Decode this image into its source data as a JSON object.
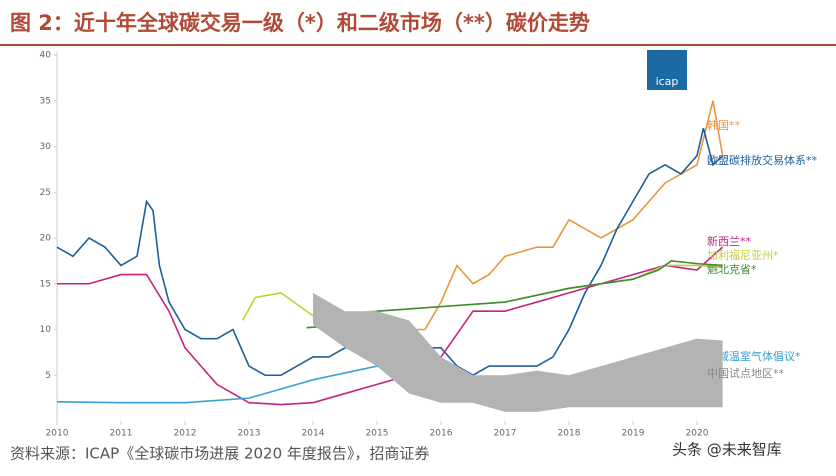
{
  "chart_data": {
    "type": "line",
    "title": "图 2：近十年全球碳交易一级（*）和二级市场（**）碳价走势",
    "source": "资料来源：ICAP《全球碳市场进展 2020 年度报告》，招商证券",
    "watermark": "头条 @未来智库",
    "logo": "icap",
    "xlim": [
      2010,
      2020.5
    ],
    "xticks": [
      2010,
      2011,
      2012,
      2013,
      2014,
      2015,
      2016,
      2017,
      2018,
      2019,
      2020
    ],
    "ylim": [
      0,
      40
    ],
    "yticks": [
      5,
      10,
      15,
      20,
      25,
      30,
      35,
      40
    ],
    "series": [
      {
        "name": "韩国**",
        "color": "#e8973f",
        "x": [
          2015,
          2015.5,
          2015.75,
          2016,
          2016.25,
          2016.5,
          2016.75,
          2017,
          2017.5,
          2017.75,
          2018,
          2018.25,
          2018.5,
          2018.75,
          2019,
          2019.5,
          2019.75,
          2020,
          2020.25,
          2020.4
        ],
        "values": [
          9,
          10,
          10,
          13,
          17,
          15,
          16,
          18,
          19,
          19,
          22,
          21,
          20,
          21,
          22,
          26,
          27,
          28,
          35,
          29
        ]
      },
      {
        "name": "欧盟碳排放交易体系**",
        "color": "#1f5f99",
        "x": [
          2010,
          2010.25,
          2010.5,
          2010.75,
          2011,
          2011.25,
          2011.4,
          2011.5,
          2011.6,
          2011.75,
          2012,
          2012.25,
          2012.5,
          2012.75,
          2013,
          2013.25,
          2013.5,
          2013.75,
          2014,
          2014.25,
          2014.5,
          2014.75,
          2015,
          2015.5,
          2015.75,
          2016,
          2016.25,
          2016.5,
          2016.75,
          2017,
          2017.5,
          2017.75,
          2018,
          2018.25,
          2018.5,
          2018.75,
          2019,
          2019.25,
          2019.5,
          2019.75,
          2020,
          2020.1,
          2020.25,
          2020.4
        ],
        "values": [
          19,
          18,
          20,
          19,
          17,
          18,
          24,
          23,
          17,
          13,
          10,
          9,
          9,
          10,
          6,
          5,
          5,
          6,
          7,
          7,
          8,
          8,
          8,
          9,
          8,
          8,
          6,
          5,
          6,
          6,
          6,
          7,
          10,
          14,
          17,
          21,
          24,
          27,
          28,
          27,
          29,
          32,
          28,
          29
        ]
      },
      {
        "name": "新西兰**",
        "color": "#c4237f",
        "x": [
          2010,
          2010.5,
          2011,
          2011.4,
          2011.75,
          2012,
          2012.25,
          2012.5,
          2012.75,
          2013,
          2013.5,
          2014,
          2014.5,
          2015,
          2015.5,
          2016,
          2016.5,
          2017,
          2017.5,
          2018,
          2018.5,
          2019,
          2019.5,
          2020,
          2020.4
        ],
        "values": [
          15,
          15,
          16,
          16,
          12,
          8,
          6,
          4,
          3,
          2,
          1.8,
          2,
          3,
          4,
          5,
          7,
          12,
          12,
          13,
          14,
          15,
          16,
          17,
          16.5,
          19
        ]
      },
      {
        "name": "加利福尼亚州*",
        "color": "#c5cf3a",
        "x": [
          2012.9,
          2013.1,
          2013.5,
          2014,
          2015,
          2016,
          2017,
          2018,
          2019,
          2019.5,
          2020,
          2020.4
        ],
        "values": [
          11,
          13.5,
          14,
          11.5,
          12,
          12.5,
          13,
          14.5,
          15.5,
          17,
          17,
          16.8
        ]
      },
      {
        "name": "魁北克省*",
        "color": "#3f8a3a",
        "x": [
          2013.9,
          2014.5,
          2015,
          2016,
          2017,
          2018,
          2019,
          2019.4,
          2019.6,
          2020,
          2020.4
        ],
        "values": [
          10.2,
          10.5,
          12,
          12.5,
          13,
          14.5,
          15.5,
          16.5,
          17.5,
          17.2,
          17
        ]
      },
      {
        "name": "区域温室气体倡议*",
        "color": "#3aa0cf",
        "x": [
          2010,
          2011,
          2012,
          2013,
          2013.5,
          2014,
          2015,
          2015.5,
          2016,
          2016.5,
          2017,
          2017.5,
          2018,
          2018.5,
          2019,
          2020,
          2020.4
        ],
        "values": [
          2.1,
          2,
          2,
          2.5,
          3.5,
          4.5,
          6,
          5,
          5,
          4.5,
          3,
          4.2,
          4.5,
          5,
          5.3,
          5.8,
          6
        ]
      },
      {
        "name": "中国试点地区**",
        "color": "#b3b3b3",
        "x": [
          2014,
          2014.5,
          2015,
          2015.5,
          2016,
          2016.5,
          2017,
          2017.5,
          2018,
          2018.5,
          2019,
          2019.5,
          2020,
          2020.4
        ],
        "high": [
          14,
          12,
          12,
          11,
          7,
          5,
          5,
          5.5,
          5,
          6,
          7,
          8,
          9,
          8.8
        ],
        "low": [
          10.5,
          8,
          6,
          3,
          2,
          2,
          1,
          1,
          1.5,
          1.5,
          1.5,
          1.5,
          1.5,
          1.5
        ]
      }
    ]
  }
}
